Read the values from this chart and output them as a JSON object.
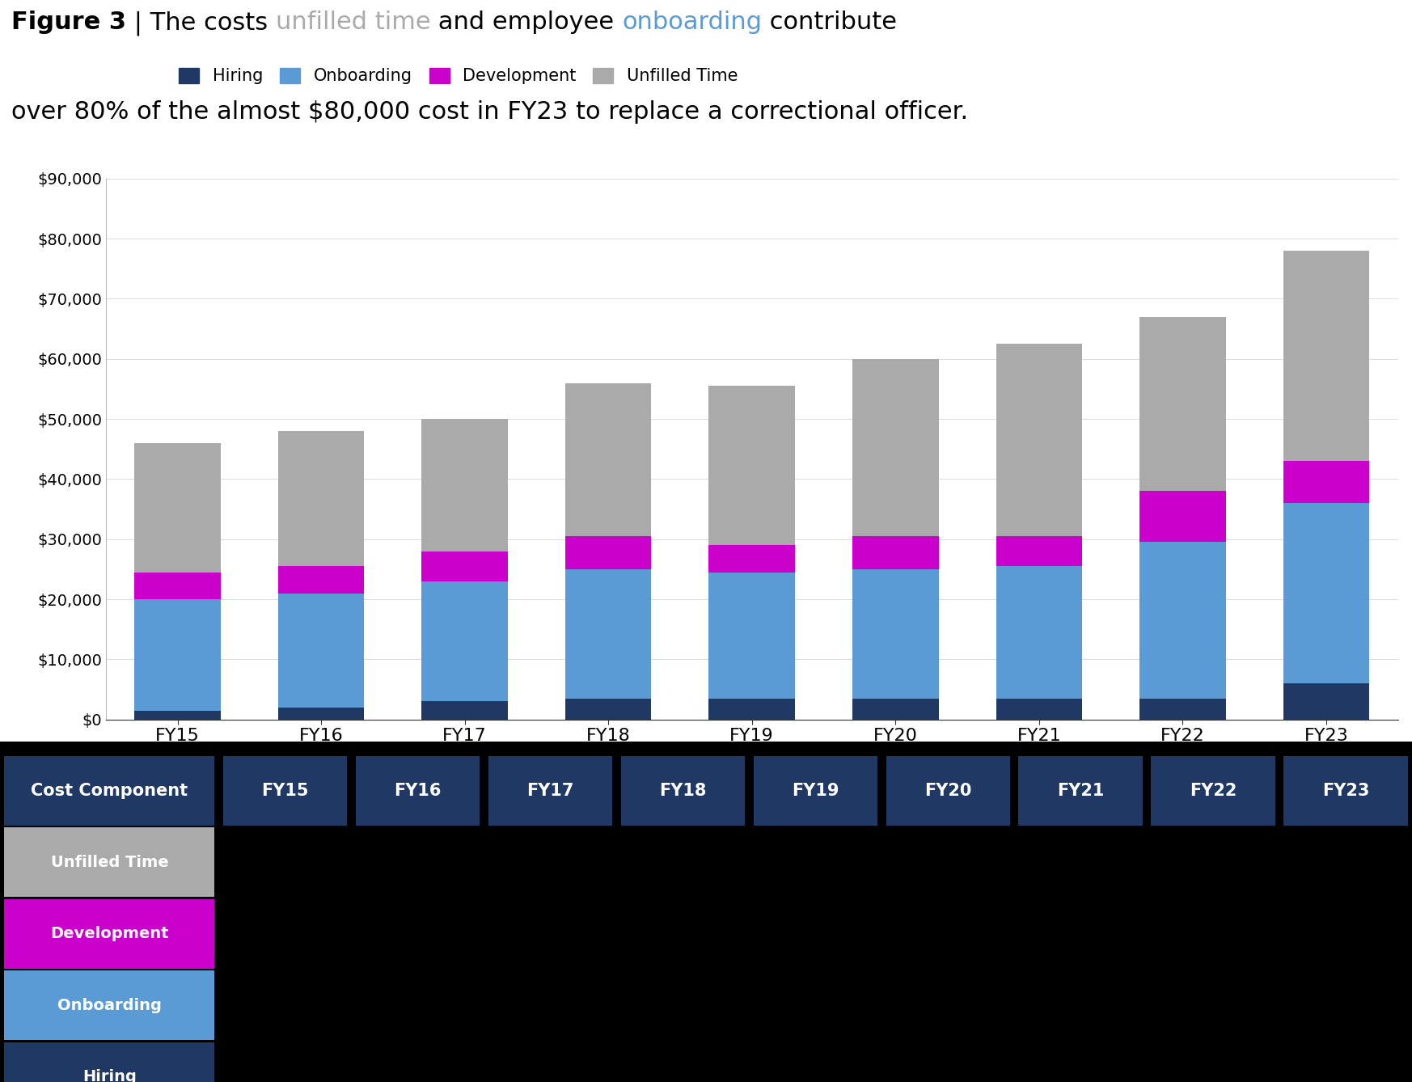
{
  "years": [
    "FY15",
    "FY16",
    "FY17",
    "FY18",
    "FY19",
    "FY20",
    "FY21",
    "FY22",
    "FY23"
  ],
  "hiring": [
    1500,
    2000,
    3000,
    3500,
    3500,
    3500,
    3500,
    3500,
    6000
  ],
  "onboarding": [
    18500,
    19000,
    20000,
    21500,
    21000,
    21500,
    22000,
    26000,
    30000
  ],
  "development": [
    4500,
    4500,
    5000,
    5500,
    4500,
    5500,
    5000,
    8500,
    7000
  ],
  "unfilled_time": [
    21500,
    22500,
    22000,
    25500,
    26500,
    29500,
    32000,
    29000,
    35000
  ],
  "colors": {
    "hiring": "#1f3864",
    "onboarding": "#5b9bd5",
    "development": "#cc00cc",
    "unfilled_time": "#aaaaaa"
  },
  "ylim": [
    0,
    90000
  ],
  "yticks": [
    0,
    10000,
    20000,
    30000,
    40000,
    50000,
    60000,
    70000,
    80000,
    90000
  ],
  "table_header_bg": "#1f3864",
  "table_header_fg": "white",
  "table_rows": [
    {
      "label": "Unfilled Time",
      "bg": "#aaaaaa",
      "fg": "white"
    },
    {
      "label": "Development",
      "bg": "#cc00cc",
      "fg": "white"
    },
    {
      "label": "Onboarding",
      "bg": "#5b9bd5",
      "fg": "white"
    },
    {
      "label": "Hiring",
      "bg": "#1f3864",
      "fg": "white"
    }
  ],
  "background_color": "#000000",
  "chart_bg": "#ffffff",
  "unfilled_time_color": "#aaaaaa",
  "onboarding_color": "#5b9bd5",
  "title_fontsize": 22,
  "legend_fontsize": 15,
  "tick_fontsize": 14,
  "bar_width": 0.6
}
